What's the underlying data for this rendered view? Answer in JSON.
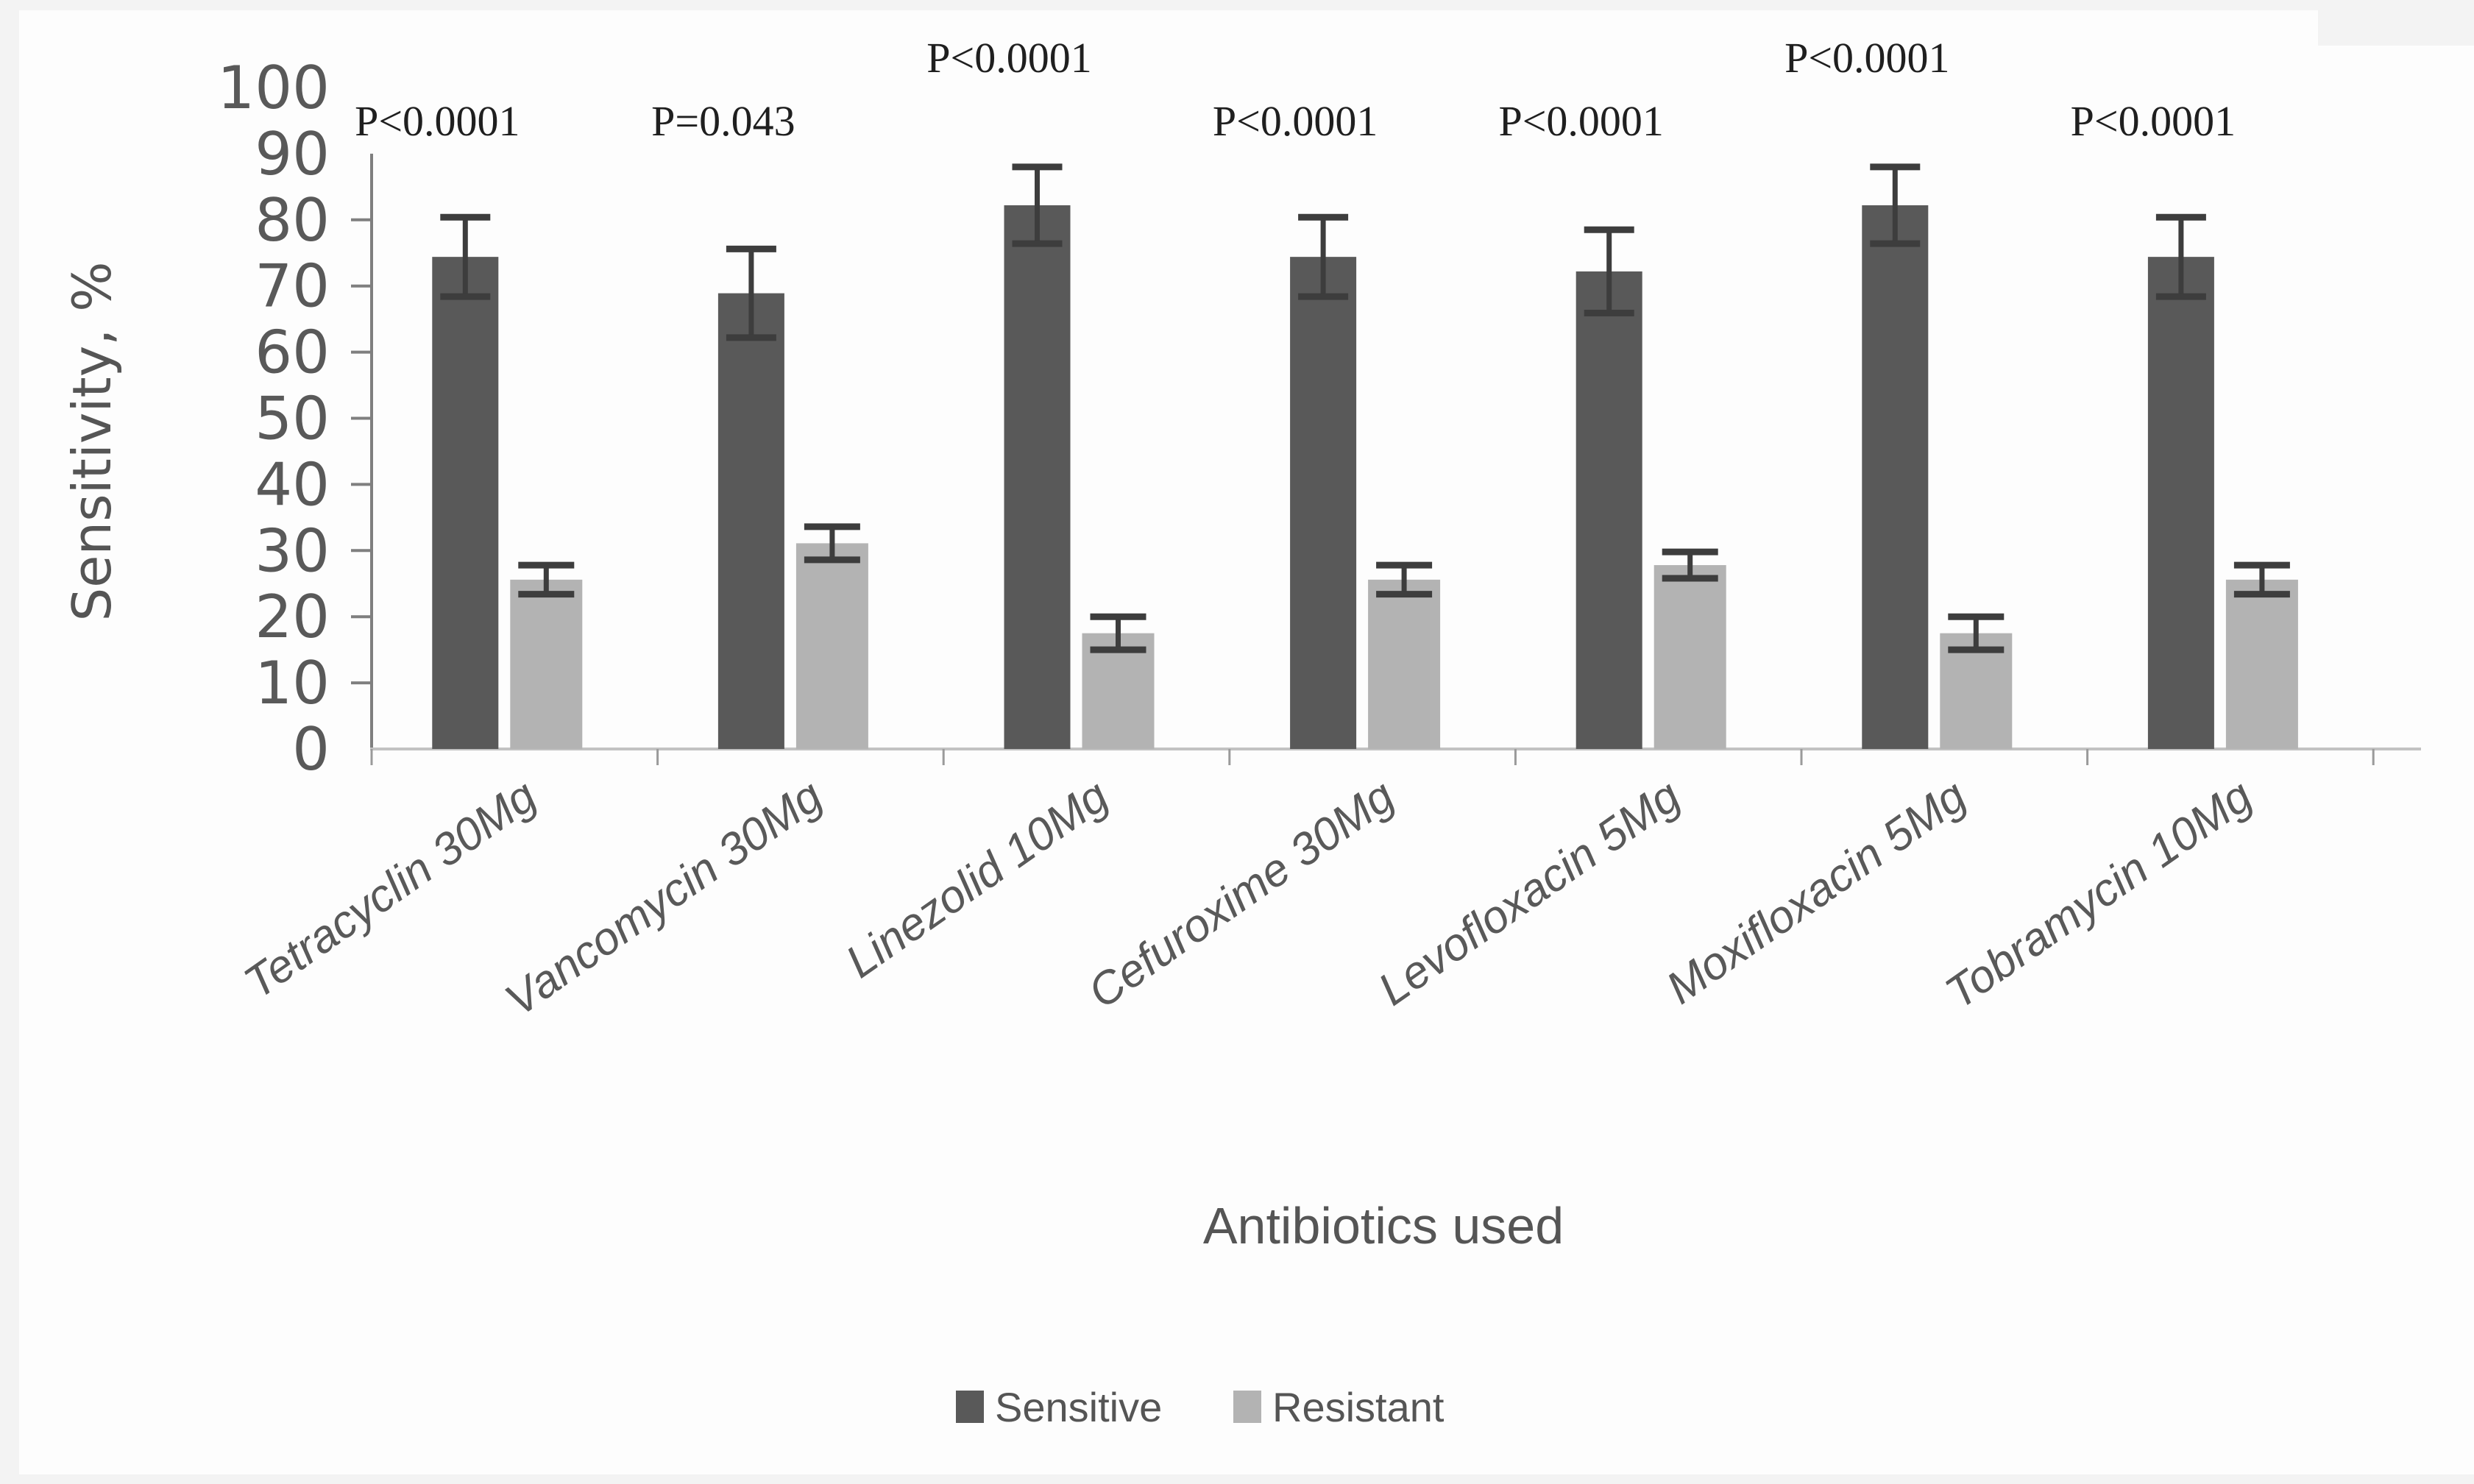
{
  "chart_data": {
    "type": "bar",
    "title": "",
    "xlabel": "Antibiotics used",
    "ylabel": "Sensitivity, %",
    "ylim": [
      0,
      100
    ],
    "ytick_interval": 10,
    "yticks": [
      0,
      10,
      20,
      30,
      40,
      50,
      60,
      70,
      80,
      90,
      100
    ],
    "grid": false,
    "legend_position": "bottom",
    "categories": [
      "Tetracyclin 30Mg",
      "Vancomycin 30Mg",
      "Linezolid 10Mg",
      "Cefuroxime 30Mg",
      "Levofloxacin 5Mg",
      "Moxifloxacin 5Mg",
      "Tobramycin 10Mg"
    ],
    "series": [
      {
        "name": "Sensitive",
        "color": "#595959",
        "values": [
          74.4,
          68.9,
          82.2,
          74.4,
          72.2,
          82.2,
          74.4
        ],
        "errors": [
          6.0,
          6.7,
          5.8,
          6.0,
          6.3,
          5.8,
          6.0
        ]
      },
      {
        "name": "Resistant",
        "color": "#b3b3b3",
        "values": [
          25.6,
          31.1,
          17.5,
          25.6,
          27.8,
          17.5,
          25.6
        ],
        "errors": [
          2.2,
          2.5,
          2.5,
          2.2,
          2.0,
          2.5,
          2.2
        ]
      }
    ],
    "annotations": [
      {
        "label": "P<0.0001",
        "raised": false
      },
      {
        "label": "P=0.043",
        "raised": false
      },
      {
        "label": "P<0.0001",
        "raised": true
      },
      {
        "label": "P<0.0001",
        "raised": false
      },
      {
        "label": "P<0.0001",
        "raised": false
      },
      {
        "label": "P<0.0001",
        "raised": true
      },
      {
        "label": "P<0.0001",
        "raised": false
      }
    ]
  },
  "colors": {
    "sensitive_bar": "#595959",
    "resistant_bar": "#b3b3b3",
    "error_bar": "#3d3d3d",
    "axis_line": "#7f7f7f",
    "baseline": "#c2c2c2",
    "boundary_tick": "#9a9a9a",
    "tick_label": "#595959",
    "annotation_text": "#1f1f1f",
    "category_label": "#595959",
    "axis_title": "#555555",
    "legend_text": "#555555",
    "background": "#fdfdfd",
    "edge_shade": "#f3f3f3"
  }
}
